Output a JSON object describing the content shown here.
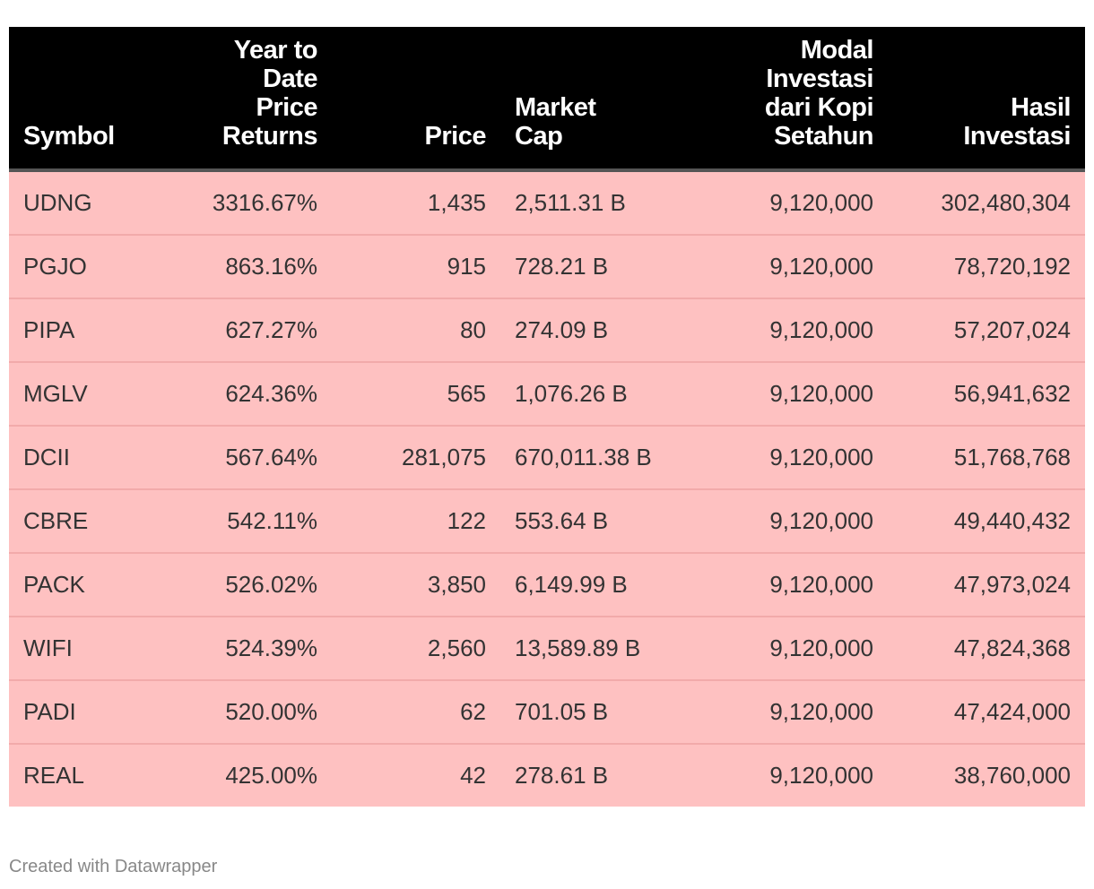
{
  "chart_data": {
    "type": "table",
    "columns": [
      "Symbol",
      "Year to Date Price Returns",
      "Price",
      "Market Cap",
      "Modal Investasi dari Kopi Setahun",
      "Hasil Investasi"
    ],
    "header_lines": [
      [
        "Symbol"
      ],
      [
        "Year to",
        "Date",
        "Price",
        "Returns"
      ],
      [
        "Price"
      ],
      [
        "Market",
        "Cap"
      ],
      [
        "Modal",
        "Investasi",
        "dari Kopi",
        "Setahun"
      ],
      [
        "Hasil",
        "Investasi"
      ]
    ],
    "rows": [
      [
        "UDNG",
        "3316.67%",
        "1,435",
        "2,511.31 B",
        "9,120,000",
        "302,480,304"
      ],
      [
        "PGJO",
        "863.16%",
        "915",
        "728.21 B",
        "9,120,000",
        "78,720,192"
      ],
      [
        "PIPA",
        "627.27%",
        "80",
        "274.09 B",
        "9,120,000",
        "57,207,024"
      ],
      [
        "MGLV",
        "624.36%",
        "565",
        "1,076.26 B",
        "9,120,000",
        "56,941,632"
      ],
      [
        "DCII",
        "567.64%",
        "281,075",
        "670,011.38 B",
        "9,120,000",
        "51,768,768"
      ],
      [
        "CBRE",
        "542.11%",
        "122",
        "553.64 B",
        "9,120,000",
        "49,440,432"
      ],
      [
        "PACK",
        "526.02%",
        "3,850",
        "6,149.99 B",
        "9,120,000",
        "47,973,024"
      ],
      [
        "WIFI",
        "524.39%",
        "2,560",
        "13,589.89 B",
        "9,120,000",
        "47,824,368"
      ],
      [
        "PADI",
        "520.00%",
        "62",
        "701.05 B",
        "9,120,000",
        "47,424,000"
      ],
      [
        "REAL",
        "425.00%",
        "42",
        "278.61 B",
        "9,120,000",
        "38,760,000"
      ]
    ],
    "colors": {
      "header_background": "#000000",
      "header_text": "#ffffff",
      "row_background": "#fec1c1",
      "body_text": "#333333"
    }
  },
  "footer": {
    "credit": "Created with Datawrapper"
  }
}
